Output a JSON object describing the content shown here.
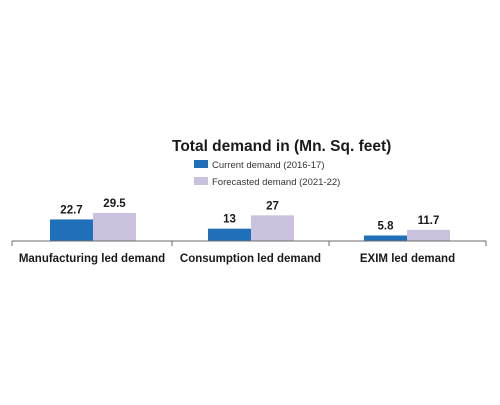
{
  "chart_data": {
    "type": "bar",
    "title": "Total demand in (Mn. Sq. feet)",
    "categories": [
      "Manufacturing led demand",
      "Consumption led demand",
      "EXIM led demand"
    ],
    "series": [
      {
        "name": "Current demand (2016-17)",
        "color": "#1f70b8",
        "values": [
          22.7,
          13,
          5.8
        ],
        "labels": [
          "22.7",
          "13",
          "5.8"
        ]
      },
      {
        "name": "Forecasted demand (2021-22)",
        "color": "#c9c1dd",
        "values": [
          29.5,
          27,
          11.7
        ],
        "labels": [
          "29.5",
          "27",
          "11.7"
        ]
      }
    ],
    "legend_position": "top-right",
    "grid": false,
    "axis_color": "#6b6b6b"
  }
}
